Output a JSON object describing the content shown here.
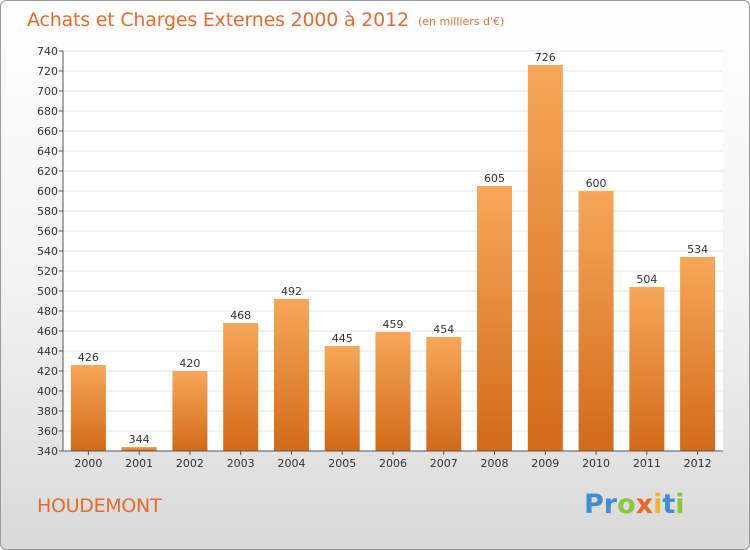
{
  "title": "Achats et Charges Externes 2000 à 2012",
  "subtitle": "(en milliers d'€)",
  "commune": "HOUDEMONT",
  "brand": {
    "text": "Proxiti",
    "letter_colors": [
      "#3d8fd1",
      "#3d8fd1",
      "#8cc63f",
      "#e8692a",
      "#f2b233",
      "#3d8fd1",
      "#8cc63f"
    ]
  },
  "colors": {
    "accent": "#e8692a",
    "bar_top": "#f7a75a",
    "bar_bottom": "#d26a19",
    "grid": "#e6e6e6",
    "axis": "#555555",
    "text": "#333333"
  },
  "chart_data": {
    "type": "bar",
    "categories": [
      "2000",
      "2001",
      "2002",
      "2003",
      "2004",
      "2005",
      "2006",
      "2007",
      "2008",
      "2009",
      "2010",
      "2011",
      "2012"
    ],
    "values": [
      426,
      344,
      420,
      468,
      492,
      445,
      459,
      454,
      605,
      726,
      600,
      504,
      534
    ],
    "ylim": [
      340,
      740
    ],
    "yticks": [
      340,
      360,
      380,
      400,
      420,
      440,
      460,
      480,
      500,
      520,
      540,
      560,
      580,
      600,
      620,
      640,
      660,
      680,
      700,
      720,
      740
    ],
    "title": "Achats et Charges Externes 2000 à 2012",
    "xlabel": "",
    "ylabel": "",
    "grid": true,
    "legend": "none"
  }
}
